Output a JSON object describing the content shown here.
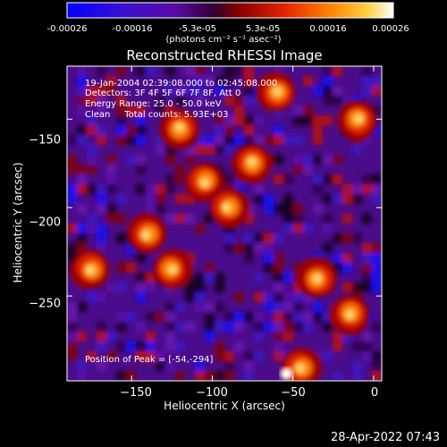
{
  "colorbar": {
    "ticks": [
      "-0.00026",
      "-0.00016",
      "-5.3e-05",
      "5.3e-05",
      "0.00016",
      "0.00026"
    ],
    "units": "(photons cm⁻² s⁻¹ asec⁻²)",
    "colors": [
      "#0000ff",
      "#5a0aa8",
      "#800000",
      "#e02000",
      "#ff8000",
      "#ffd040",
      "#ffffff"
    ]
  },
  "title": "Reconstructed RHESSI Image",
  "annotations": {
    "line1": "19-Jan-2004 02:39:08.000 to 02:45:08.000",
    "line2": "Detectors: 3F 4F 5F 6F 7F 8F, Att 0",
    "line3": "Energy Range: 25.0 - 50.0 keV",
    "line4": "Clean     Total counts: 5.93E+03",
    "peak": "Position of Peak = [-54,-294]"
  },
  "timestamp": "28-Apr-2022 07:43",
  "chart_data": {
    "type": "heatmap",
    "title": "Reconstructed RHESSI Image",
    "xlabel": "Heliocentric X (arcsec)",
    "ylabel": "Heliocentric Y (arcsec)",
    "xlim": [
      -190,
      5
    ],
    "ylim": [
      -298,
      -120
    ],
    "xticks": [
      "−150",
      "−100",
      "−50",
      "0"
    ],
    "xtick_values": [
      -150,
      -100,
      -50,
      0
    ],
    "yticks": [
      "−150",
      "−200",
      "−250"
    ],
    "ytick_values": [
      -150,
      -200,
      -250
    ],
    "color_range": [
      -0.00026,
      0.00026
    ],
    "peak": [
      -54,
      -294
    ],
    "bright_sources": [
      {
        "x": -125,
        "y": -235
      },
      {
        "x": -140,
        "y": -215
      },
      {
        "x": -175,
        "y": -235
      },
      {
        "x": -35,
        "y": -240
      },
      {
        "x": -45,
        "y": -290
      },
      {
        "x": -105,
        "y": -185
      },
      {
        "x": -90,
        "y": -200
      },
      {
        "x": -75,
        "y": -175
      },
      {
        "x": -10,
        "y": -150
      },
      {
        "x": -60,
        "y": -135
      },
      {
        "x": -120,
        "y": -155
      },
      {
        "x": -15,
        "y": -260
      }
    ]
  }
}
